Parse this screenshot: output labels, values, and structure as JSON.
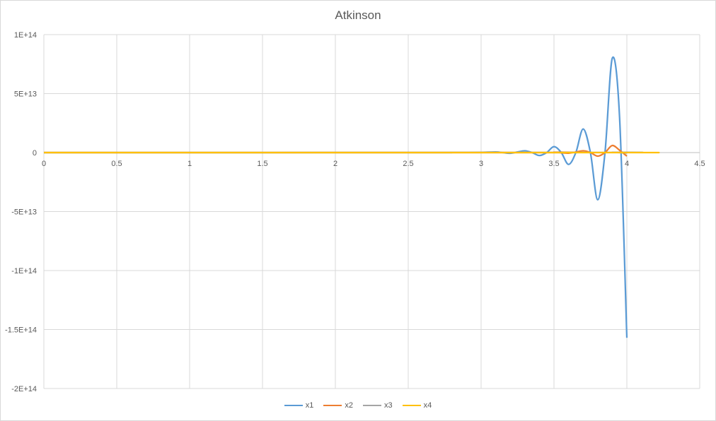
{
  "chart_data": {
    "type": "line",
    "title": "Atkinson",
    "xlabel": "",
    "ylabel": "",
    "xlim": [
      0,
      4.5
    ],
    "ylim": [
      -200000000000000.0,
      100000000000000.0
    ],
    "x_ticks": [
      0,
      0.5,
      1,
      1.5,
      2,
      2.5,
      3,
      3.5,
      4,
      4.5
    ],
    "x_tick_labels": [
      "0",
      "0.5",
      "1",
      "1.5",
      "2",
      "2.5",
      "3",
      "3.5",
      "4",
      "4.5"
    ],
    "y_ticks": [
      100000000000000.0,
      50000000000000.0,
      0,
      -50000000000000.0,
      -100000000000000.0,
      -150000000000000.0,
      -200000000000000.0
    ],
    "y_tick_labels": [
      "1E+14",
      "5E+13",
      "0",
      "-5E+13",
      "-1E+14",
      "-1.5E+14",
      "-2E+14"
    ],
    "grid": true,
    "legend_position": "bottom",
    "series": [
      {
        "name": "x1",
        "color": "#5b9bd5",
        "x": [
          0,
          2.5,
          2.8,
          2.9,
          3.0,
          3.1,
          3.15,
          3.2,
          3.25,
          3.3,
          3.35,
          3.4,
          3.45,
          3.5,
          3.55,
          3.6,
          3.65,
          3.7,
          3.75,
          3.8,
          3.85,
          3.9,
          3.95,
          4.0
        ],
        "y": [
          0,
          0,
          50000000000.0,
          100000000000.0,
          200000000000.0,
          500000000000.0,
          0,
          -600000000000.0,
          500000000000.0,
          1500000000000.0,
          0,
          -2500000000000.0,
          0,
          5000000000000.0,
          0,
          -10000000000000.0,
          0,
          20000000000000.0,
          0,
          -40000000000000.0,
          0,
          80000000000000.0,
          30000000000000.0,
          -157000000000000.0
        ]
      },
      {
        "name": "x2",
        "color": "#ed7d31",
        "x": [
          0,
          3.4,
          3.5,
          3.6,
          3.7,
          3.75,
          3.8,
          3.85,
          3.9,
          3.95,
          4.0
        ],
        "y": [
          0,
          0,
          300000000000.0,
          -500000000000.0,
          1500000000000.0,
          0,
          -3000000000000.0,
          0,
          6000000000000.0,
          2000000000000.0,
          -3000000000000.0
        ]
      },
      {
        "name": "x3",
        "color": "#a5a5a5",
        "x": [
          0,
          3.8,
          3.9,
          4.0
        ],
        "y": [
          0,
          100000000000.0,
          200000000000.0,
          -300000000000.0
        ]
      },
      {
        "name": "x4",
        "color": "#ffc000",
        "x": [
          0,
          3.9,
          4.0
        ],
        "y": [
          0,
          0,
          0
        ]
      }
    ]
  }
}
